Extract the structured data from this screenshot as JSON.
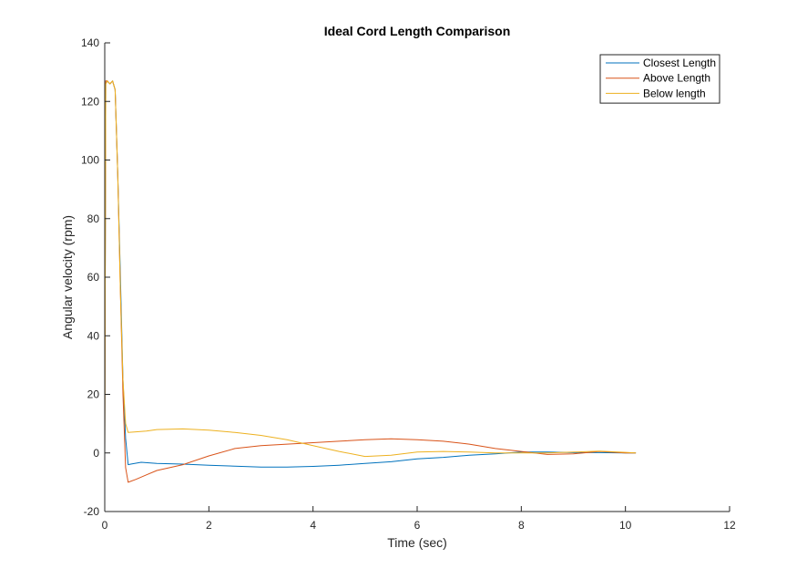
{
  "chart_data": {
    "type": "line",
    "title": "Ideal Cord Length Comparison",
    "xlabel": "Time (sec)",
    "ylabel": "Angular velocity (rpm)",
    "xlim": [
      0,
      12
    ],
    "ylim": [
      -20,
      140
    ],
    "xticks": [
      0,
      2,
      4,
      6,
      8,
      10,
      12
    ],
    "yticks": [
      -20,
      0,
      20,
      40,
      60,
      80,
      100,
      120,
      140
    ],
    "grid": false,
    "legend_position": "top-right",
    "series": [
      {
        "name": "Closest Length",
        "color": "#0072BD",
        "x": [
          0,
          0.02,
          0.05,
          0.1,
          0.15,
          0.2,
          0.25,
          0.3,
          0.35,
          0.4,
          0.45,
          0.5,
          0.7,
          1.0,
          1.5,
          2.0,
          2.5,
          3.0,
          3.5,
          4.0,
          4.5,
          5.0,
          5.5,
          6.0,
          6.5,
          7.0,
          7.5,
          8.0,
          8.5,
          9.0,
          9.5,
          10.0,
          10.2
        ],
        "y": [
          0,
          126,
          127,
          126,
          127,
          124,
          95,
          60,
          25,
          5,
          -4,
          -3.8,
          -3.2,
          -3.6,
          -3.8,
          -4.2,
          -4.5,
          -4.8,
          -4.8,
          -4.6,
          -4.2,
          -3.6,
          -3.0,
          -2.0,
          -1.5,
          -0.8,
          -0.3,
          0.3,
          0.3,
          0.1,
          0.1,
          0.0,
          0.0
        ]
      },
      {
        "name": "Above Length",
        "color": "#D95319",
        "x": [
          0,
          0.02,
          0.05,
          0.1,
          0.15,
          0.2,
          0.25,
          0.3,
          0.35,
          0.4,
          0.45,
          0.6,
          0.8,
          1.0,
          1.5,
          2.0,
          2.5,
          3.0,
          3.5,
          4.0,
          4.5,
          5.0,
          5.5,
          6.0,
          6.5,
          7.0,
          7.5,
          8.0,
          8.5,
          9.0,
          9.5,
          10.0,
          10.2
        ],
        "y": [
          0,
          127,
          127,
          126,
          127,
          124,
          95,
          55,
          20,
          -5,
          -10,
          -9,
          -7.5,
          -6,
          -4,
          -1,
          1.5,
          2.5,
          3.0,
          3.5,
          4.0,
          4.5,
          4.8,
          4.5,
          4.0,
          3.0,
          1.5,
          0.5,
          -0.5,
          -0.3,
          0.5,
          0.0,
          0.0
        ]
      },
      {
        "name": "Below length",
        "color": "#EDB120",
        "x": [
          0,
          0.02,
          0.05,
          0.1,
          0.15,
          0.2,
          0.25,
          0.3,
          0.35,
          0.4,
          0.45,
          0.6,
          0.8,
          1.0,
          1.5,
          2.0,
          2.5,
          3.0,
          3.5,
          4.0,
          4.5,
          5.0,
          5.5,
          6.0,
          6.5,
          7.0,
          7.5,
          8.0,
          8.5,
          9.0,
          9.5,
          10.0,
          10.2
        ],
        "y": [
          0,
          126,
          127,
          126,
          127,
          124,
          95,
          55,
          25,
          10,
          7,
          7.2,
          7.5,
          8.0,
          8.2,
          7.8,
          7.0,
          6.0,
          4.5,
          2.5,
          0.5,
          -1.2,
          -0.8,
          0.3,
          0.5,
          0.3,
          0.0,
          0.0,
          0.0,
          0.3,
          0.6,
          0.2,
          0.0
        ]
      }
    ]
  }
}
